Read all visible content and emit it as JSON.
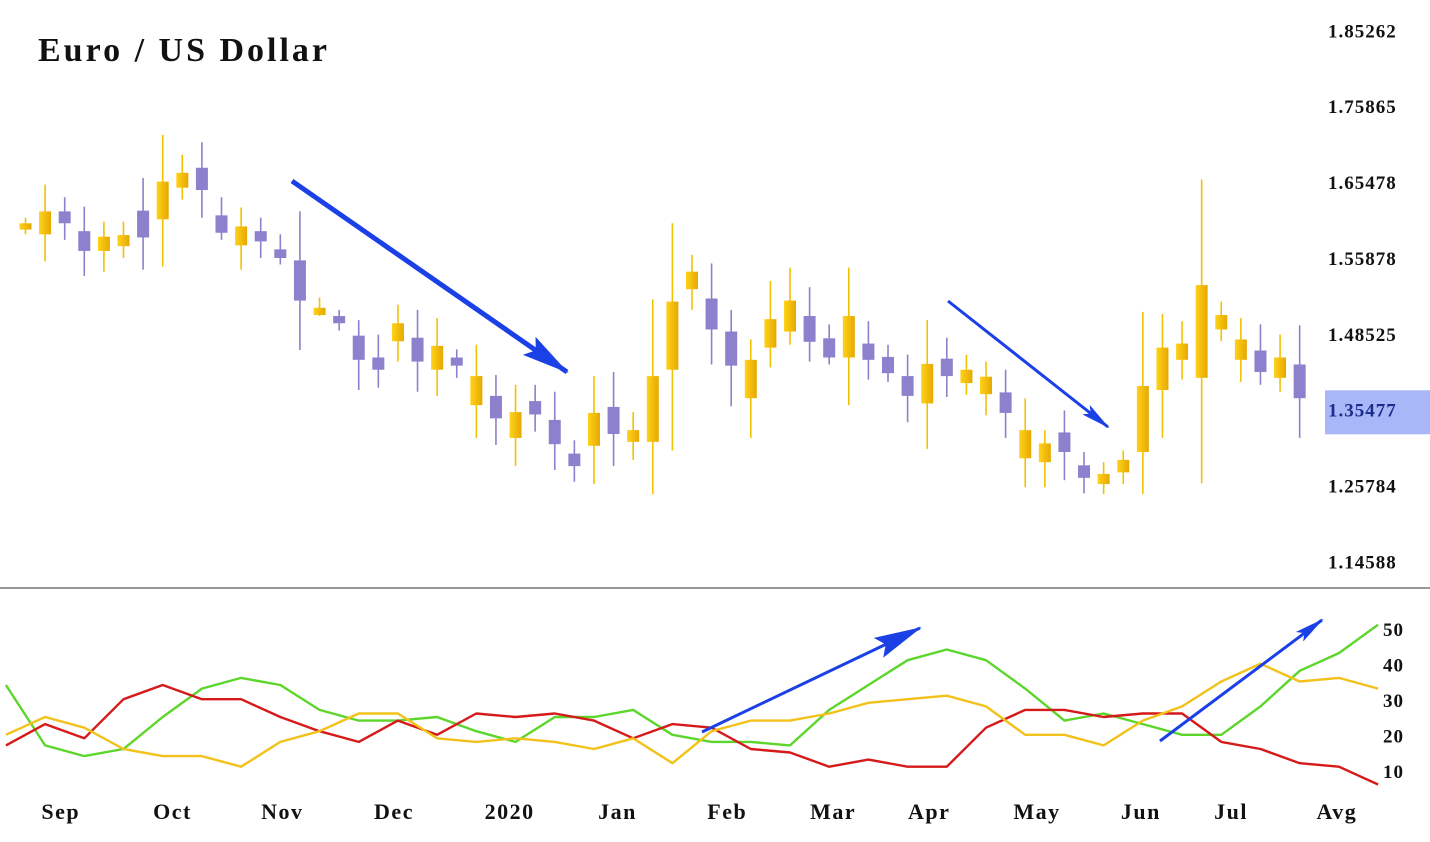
{
  "chart_data": [
    {
      "type": "candlestick",
      "title": "Euro / US Dollar",
      "up_color": "#f2c200",
      "down_color": "#8d80cc",
      "xlim": [
        -1.3,
        69.2
      ],
      "xticks": [
        {
          "value": 1.8,
          "label": "Sep"
        },
        {
          "value": 7.5,
          "label": "Oct"
        },
        {
          "value": 13.1,
          "label": "Nov"
        },
        {
          "value": 18.8,
          "label": "Dec"
        },
        {
          "value": 24.7,
          "label": "2020"
        },
        {
          "value": 30.2,
          "label": "Jan"
        },
        {
          "value": 35.8,
          "label": "Feb"
        },
        {
          "value": 41.2,
          "label": "Mar"
        },
        {
          "value": 46.1,
          "label": "Apr"
        },
        {
          "value": 51.6,
          "label": "May"
        },
        {
          "value": 56.9,
          "label": "Jun"
        },
        {
          "value": 61.5,
          "label": "Jul"
        },
        {
          "value": 66.9,
          "label": "Avg"
        }
      ],
      "ylim": [
        1.14588,
        1.85262
      ],
      "yticks": [
        1.85262,
        1.75865,
        1.65478,
        1.55878,
        1.48525,
        1.35477,
        1.25784,
        1.14588
      ],
      "open": [
        1.598,
        1.592,
        1.621,
        1.596,
        1.571,
        1.577,
        1.622,
        1.611,
        1.651,
        1.678,
        1.616,
        1.578,
        1.596,
        1.573,
        1.559,
        1.506,
        1.505,
        1.486,
        1.449,
        1.477,
        1.483,
        1.428,
        1.449,
        1.367,
        1.383,
        1.322,
        1.374,
        1.345,
        1.302,
        1.312,
        1.364,
        1.317,
        1.317,
        1.428,
        1.531,
        1.522,
        1.49,
        1.379,
        1.466,
        1.49,
        1.505,
        1.482,
        1.449,
        1.473,
        1.45,
        1.417,
        1.37,
        1.447,
        1.405,
        1.386,
        1.389,
        1.296,
        1.291,
        1.329,
        1.287,
        1.263,
        1.278,
        1.304,
        1.393,
        1.445,
        1.414,
        1.492,
        1.445,
        1.461,
        1.414,
        1.437
      ],
      "high": [
        1.613,
        1.655,
        1.639,
        1.627,
        1.608,
        1.608,
        1.664,
        1.723,
        1.696,
        1.713,
        1.639,
        1.626,
        1.613,
        1.592,
        1.621,
        1.523,
        1.511,
        1.501,
        1.487,
        1.516,
        1.511,
        1.503,
        1.463,
        1.471,
        1.419,
        1.402,
        1.402,
        1.39,
        1.319,
        1.417,
        1.424,
        1.355,
        1.521,
        1.606,
        1.566,
        1.556,
        1.511,
        1.48,
        1.539,
        1.552,
        1.533,
        1.497,
        1.552,
        1.5,
        1.471,
        1.454,
        1.501,
        1.483,
        1.454,
        1.442,
        1.428,
        1.379,
        1.332,
        1.358,
        1.304,
        1.291,
        1.306,
        1.509,
        1.507,
        1.5,
        1.662,
        1.519,
        1.503,
        1.497,
        1.487,
        1.496
      ],
      "low": [
        1.592,
        1.558,
        1.585,
        1.544,
        1.548,
        1.562,
        1.55,
        1.553,
        1.636,
        1.613,
        1.585,
        1.55,
        1.562,
        1.555,
        1.462,
        1.505,
        1.491,
        1.393,
        1.397,
        1.442,
        1.39,
        1.383,
        1.414,
        1.322,
        1.313,
        1.286,
        1.33,
        1.281,
        1.266,
        1.263,
        1.286,
        1.294,
        1.249,
        1.306,
        1.511,
        1.437,
        1.365,
        1.322,
        1.432,
        1.471,
        1.442,
        1.437,
        1.367,
        1.411,
        1.407,
        1.342,
        1.308,
        1.381,
        1.385,
        1.351,
        1.322,
        1.259,
        1.259,
        1.268,
        1.25,
        1.249,
        1.263,
        1.249,
        1.322,
        1.411,
        1.264,
        1.477,
        1.407,
        1.402,
        1.39,
        1.322
      ],
      "close": [
        1.606,
        1.621,
        1.606,
        1.571,
        1.589,
        1.591,
        1.588,
        1.659,
        1.671,
        1.648,
        1.594,
        1.602,
        1.583,
        1.562,
        1.52,
        1.513,
        1.498,
        1.445,
        1.428,
        1.498,
        1.442,
        1.469,
        1.435,
        1.417,
        1.347,
        1.355,
        1.352,
        1.314,
        1.286,
        1.354,
        1.327,
        1.332,
        1.417,
        1.519,
        1.548,
        1.492,
        1.435,
        1.445,
        1.502,
        1.52,
        1.476,
        1.449,
        1.505,
        1.445,
        1.422,
        1.383,
        1.438,
        1.417,
        1.428,
        1.416,
        1.354,
        1.332,
        1.315,
        1.304,
        1.271,
        1.276,
        1.294,
        1.4,
        1.466,
        1.473,
        1.535,
        1.506,
        1.48,
        1.424,
        1.449,
        1.379
      ]
    },
    {
      "type": "line",
      "xlim": [
        -1.3,
        69.2
      ],
      "x": [
        -1,
        1,
        3,
        5,
        7,
        9,
        11,
        13,
        15,
        17,
        19,
        21,
        23,
        25,
        27,
        29,
        31,
        33,
        35,
        37,
        39,
        41,
        43,
        45,
        47,
        49,
        51,
        53,
        55,
        57,
        59,
        61,
        63,
        65,
        67,
        69
      ],
      "ylim": [
        5,
        55
      ],
      "yticks": [
        10,
        20,
        30,
        40,
        50
      ],
      "series": [
        {
          "color": "#5cd62a",
          "values": [
            35,
            18,
            15,
            17,
            26,
            34,
            37,
            35,
            28,
            25,
            25,
            26,
            22,
            19,
            26,
            26,
            28,
            21,
            19,
            19,
            18,
            28,
            35,
            42,
            45,
            42,
            34,
            25,
            27,
            24,
            21,
            21,
            29,
            39,
            44,
            52
          ]
        },
        {
          "color": "#d61a1a",
          "values": [
            18,
            24,
            20,
            31,
            35,
            31,
            31,
            26,
            22,
            19,
            25,
            21,
            27,
            26,
            27,
            25,
            20,
            24,
            23,
            17,
            16,
            12,
            14,
            12,
            12,
            23,
            28,
            28,
            26,
            27,
            27,
            19,
            17,
            13,
            12,
            7
          ]
        },
        {
          "color": "#f2c21b",
          "values": [
            21,
            26,
            23,
            17,
            15,
            15,
            12,
            19,
            22,
            27,
            27,
            20,
            19,
            20,
            19,
            17,
            20,
            13,
            22,
            25,
            25,
            27,
            30,
            31,
            32,
            29,
            21,
            21,
            18,
            25,
            29,
            36,
            41,
            36,
            37,
            34
          ]
        }
      ]
    }
  ]
}
